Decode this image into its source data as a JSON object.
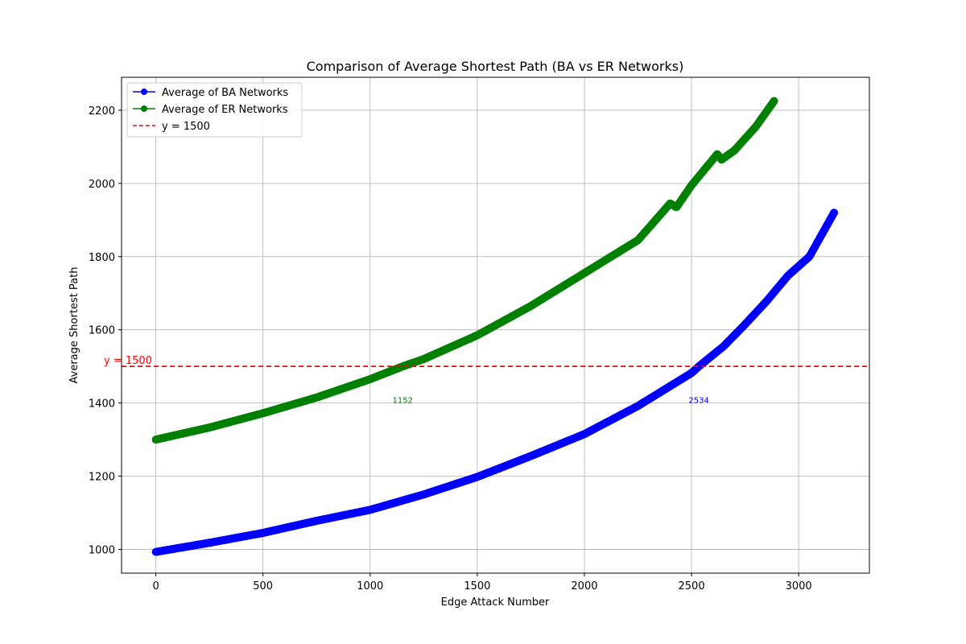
{
  "chart_data": {
    "type": "line",
    "title": "Comparison of Average Shortest Path (BA vs ER Networks)",
    "xlabel": "Edge Attack Number",
    "ylabel": "Average Shortest Path",
    "xlim": [
      -160,
      3330
    ],
    "ylim": [
      935,
      2290
    ],
    "xticks": [
      0,
      500,
      1000,
      1500,
      2000,
      2500,
      3000
    ],
    "xtick_labels": [
      "0",
      "500",
      "1000",
      "1500",
      "2000",
      "2500",
      "3000"
    ],
    "yticks": [
      1000,
      1200,
      1400,
      1600,
      1800,
      2000,
      2200
    ],
    "ytick_labels": [
      "1000",
      "1200",
      "1400",
      "1600",
      "1800",
      "2000",
      "2200"
    ],
    "grid": true,
    "legend_position": "upper-left",
    "series": [
      {
        "name": "Average of BA Networks",
        "color": "#0000ff",
        "marker": "circle",
        "x": [
          0,
          250,
          500,
          750,
          1000,
          1250,
          1500,
          1750,
          2000,
          2250,
          2500,
          2534,
          2650,
          2750,
          2850,
          2950,
          3050,
          3165
        ],
        "y": [
          993,
          1018,
          1045,
          1078,
          1108,
          1150,
          1198,
          1255,
          1315,
          1392,
          1482,
          1500,
          1555,
          1615,
          1678,
          1748,
          1800,
          1920
        ]
      },
      {
        "name": "Average of ER Networks",
        "color": "#008000",
        "marker": "circle",
        "x": [
          0,
          250,
          500,
          750,
          1000,
          1152,
          1250,
          1500,
          1750,
          2000,
          2250,
          2400,
          2430,
          2500,
          2620,
          2640,
          2700,
          2800,
          2885
        ],
        "y": [
          1300,
          1333,
          1372,
          1415,
          1465,
          1500,
          1520,
          1585,
          1665,
          1755,
          1845,
          1945,
          1935,
          1995,
          2080,
          2065,
          2090,
          2155,
          2225
        ]
      }
    ],
    "reference_line": {
      "name": "y = 1500",
      "y": 1500,
      "color": "#ff0000",
      "style": "dashed",
      "label": "y = 1500"
    },
    "annotations": [
      {
        "text": "1152",
        "x": 1152,
        "y": 1400,
        "color": "#008000"
      },
      {
        "text": "2534",
        "x": 2534,
        "y": 1400,
        "color": "#0000ff"
      }
    ]
  }
}
